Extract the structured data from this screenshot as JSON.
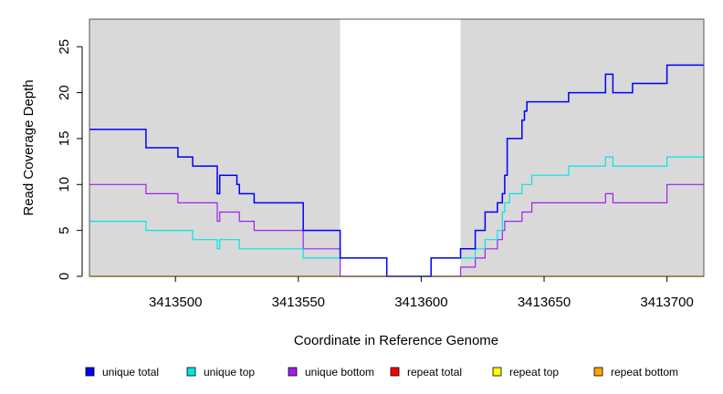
{
  "chart_data": {
    "type": "line",
    "xlabel": "Coordinate in Reference Genome",
    "ylabel": "Read Coverage Depth",
    "xlim": [
      3413465,
      3413715
    ],
    "ylim": [
      0,
      28
    ],
    "x_ticks": [
      3413500,
      3413550,
      3413600,
      3413650,
      3413700
    ],
    "y_ticks": [
      0,
      5,
      10,
      15,
      20,
      25
    ],
    "shaded_regions": [
      [
        3413465,
        3413567
      ],
      [
        3413616,
        3413715
      ]
    ],
    "shade_color": "#d9d9d9",
    "legend_position": "bottom",
    "series": [
      {
        "name": "unique total",
        "color": "#0000ff",
        "x": [
          3413465,
          3413488,
          3413501,
          3413507,
          3413517,
          3413518,
          3413519,
          3413525,
          3413526,
          3413532,
          3413552,
          3413567,
          3413586,
          3413587,
          3413604,
          3413616,
          3413622,
          3413626,
          3413631,
          3413633,
          3413634,
          3413635,
          3413636,
          3413641,
          3413642,
          3413643,
          3413644,
          3413645,
          3413660,
          3413675,
          3413678,
          3413686,
          3413700,
          3413715
        ],
        "y": [
          16,
          14,
          13,
          12,
          9,
          11,
          11,
          10,
          9,
          8,
          5,
          2,
          0,
          0,
          2,
          3,
          5,
          7,
          8,
          9,
          11,
          15,
          15,
          17,
          18,
          19,
          19,
          19,
          20,
          22,
          20,
          21,
          23,
          23
        ]
      },
      {
        "name": "unique top",
        "color": "#00e5e5",
        "x": [
          3413465,
          3413488,
          3413507,
          3413517,
          3413518,
          3413526,
          3413552,
          3413567,
          3413586,
          3413604,
          3413616,
          3413622,
          3413626,
          3413631,
          3413633,
          3413634,
          3413636,
          3413641,
          3413645,
          3413660,
          3413675,
          3413678,
          3413700,
          3413715
        ],
        "y": [
          6,
          5,
          4,
          3,
          4,
          3,
          2,
          2,
          0,
          2,
          2,
          3,
          4,
          5,
          7,
          8,
          9,
          10,
          11,
          12,
          13,
          12,
          13,
          13
        ],
        "visible_x_range": [
          3413465,
          3413715
        ]
      },
      {
        "name": "unique bottom",
        "color": "#a020f0",
        "x": [
          3413465,
          3413488,
          3413501,
          3413517,
          3413518,
          3413526,
          3413532,
          3413552,
          3413567,
          3413586,
          3413604,
          3413616,
          3413622,
          3413626,
          3413631,
          3413633,
          3413634,
          3413636,
          3413641,
          3413643,
          3413645,
          3413660,
          3413675,
          3413678,
          3413700,
          3413715
        ],
        "y": [
          10,
          9,
          8,
          6,
          7,
          6,
          5,
          3,
          0,
          0,
          0,
          1,
          2,
          3,
          4,
          5,
          6,
          6,
          7,
          7,
          8,
          8,
          9,
          8,
          10,
          10
        ]
      },
      {
        "name": "repeat total",
        "color": "#ff0000",
        "x": [
          3413465,
          3413715
        ],
        "y": [
          0,
          0
        ]
      },
      {
        "name": "repeat top",
        "color": "#ffff00",
        "x": [
          3413465,
          3413715
        ],
        "y": [
          0,
          0
        ]
      },
      {
        "name": "repeat bottom",
        "color": "#ffa500",
        "x": [
          3413465,
          3413715
        ],
        "y": [
          0,
          0
        ]
      }
    ]
  }
}
